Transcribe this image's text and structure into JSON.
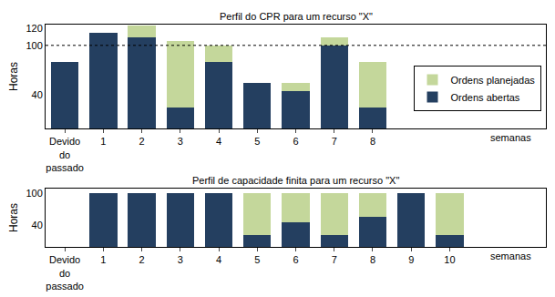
{
  "chart_data": [
    {
      "type": "bar",
      "title": "Perfil do CPR para um recurso \"X\"",
      "y_label": "Horas",
      "x_label": "semanas",
      "categories": [
        "Devido do passado",
        "1",
        "2",
        "3",
        "4",
        "5",
        "6",
        "7",
        "8",
        null,
        null,
        null,
        null
      ],
      "series": [
        {
          "name": "Ordens abertas",
          "color": "#243f60",
          "values": [
            80,
            115,
            110,
            25,
            80,
            55,
            45,
            100,
            25,
            null,
            null,
            null,
            null
          ]
        },
        {
          "name": "Ordens planejadas",
          "color": "#c4d79b",
          "values": [
            null,
            null,
            14,
            80,
            20,
            null,
            10,
            10,
            55,
            null,
            null,
            null,
            null
          ]
        }
      ],
      "stacked": true,
      "ylim": [
        0,
        125
      ],
      "yticks": [
        40,
        100,
        120
      ],
      "reference_line": 100,
      "grid": false,
      "legend": "top right"
    },
    {
      "type": "bar",
      "title": "Perfil de capacidade finita para um recurso \"X\"",
      "y_label": "Horas",
      "x_label": "semanas",
      "categories": [
        "Devido do passado",
        "1",
        "2",
        "3",
        "4",
        "5",
        "6",
        "7",
        "8",
        "9",
        "10",
        null,
        null
      ],
      "series": [
        {
          "name": "Ordens abertas",
          "color": "#243f60",
          "values": [
            null,
            100,
            100,
            100,
            100,
            22,
            45,
            22,
            55,
            100,
            22,
            null,
            null
          ]
        },
        {
          "name": "Ordens planejadas",
          "color": "#c4d79b",
          "values": [
            null,
            null,
            null,
            null,
            null,
            78,
            55,
            78,
            45,
            null,
            78,
            null,
            null
          ]
        }
      ],
      "stacked": true,
      "ylim": [
        0,
        108
      ],
      "yticks": [
        40,
        100
      ],
      "grid": false
    }
  ]
}
